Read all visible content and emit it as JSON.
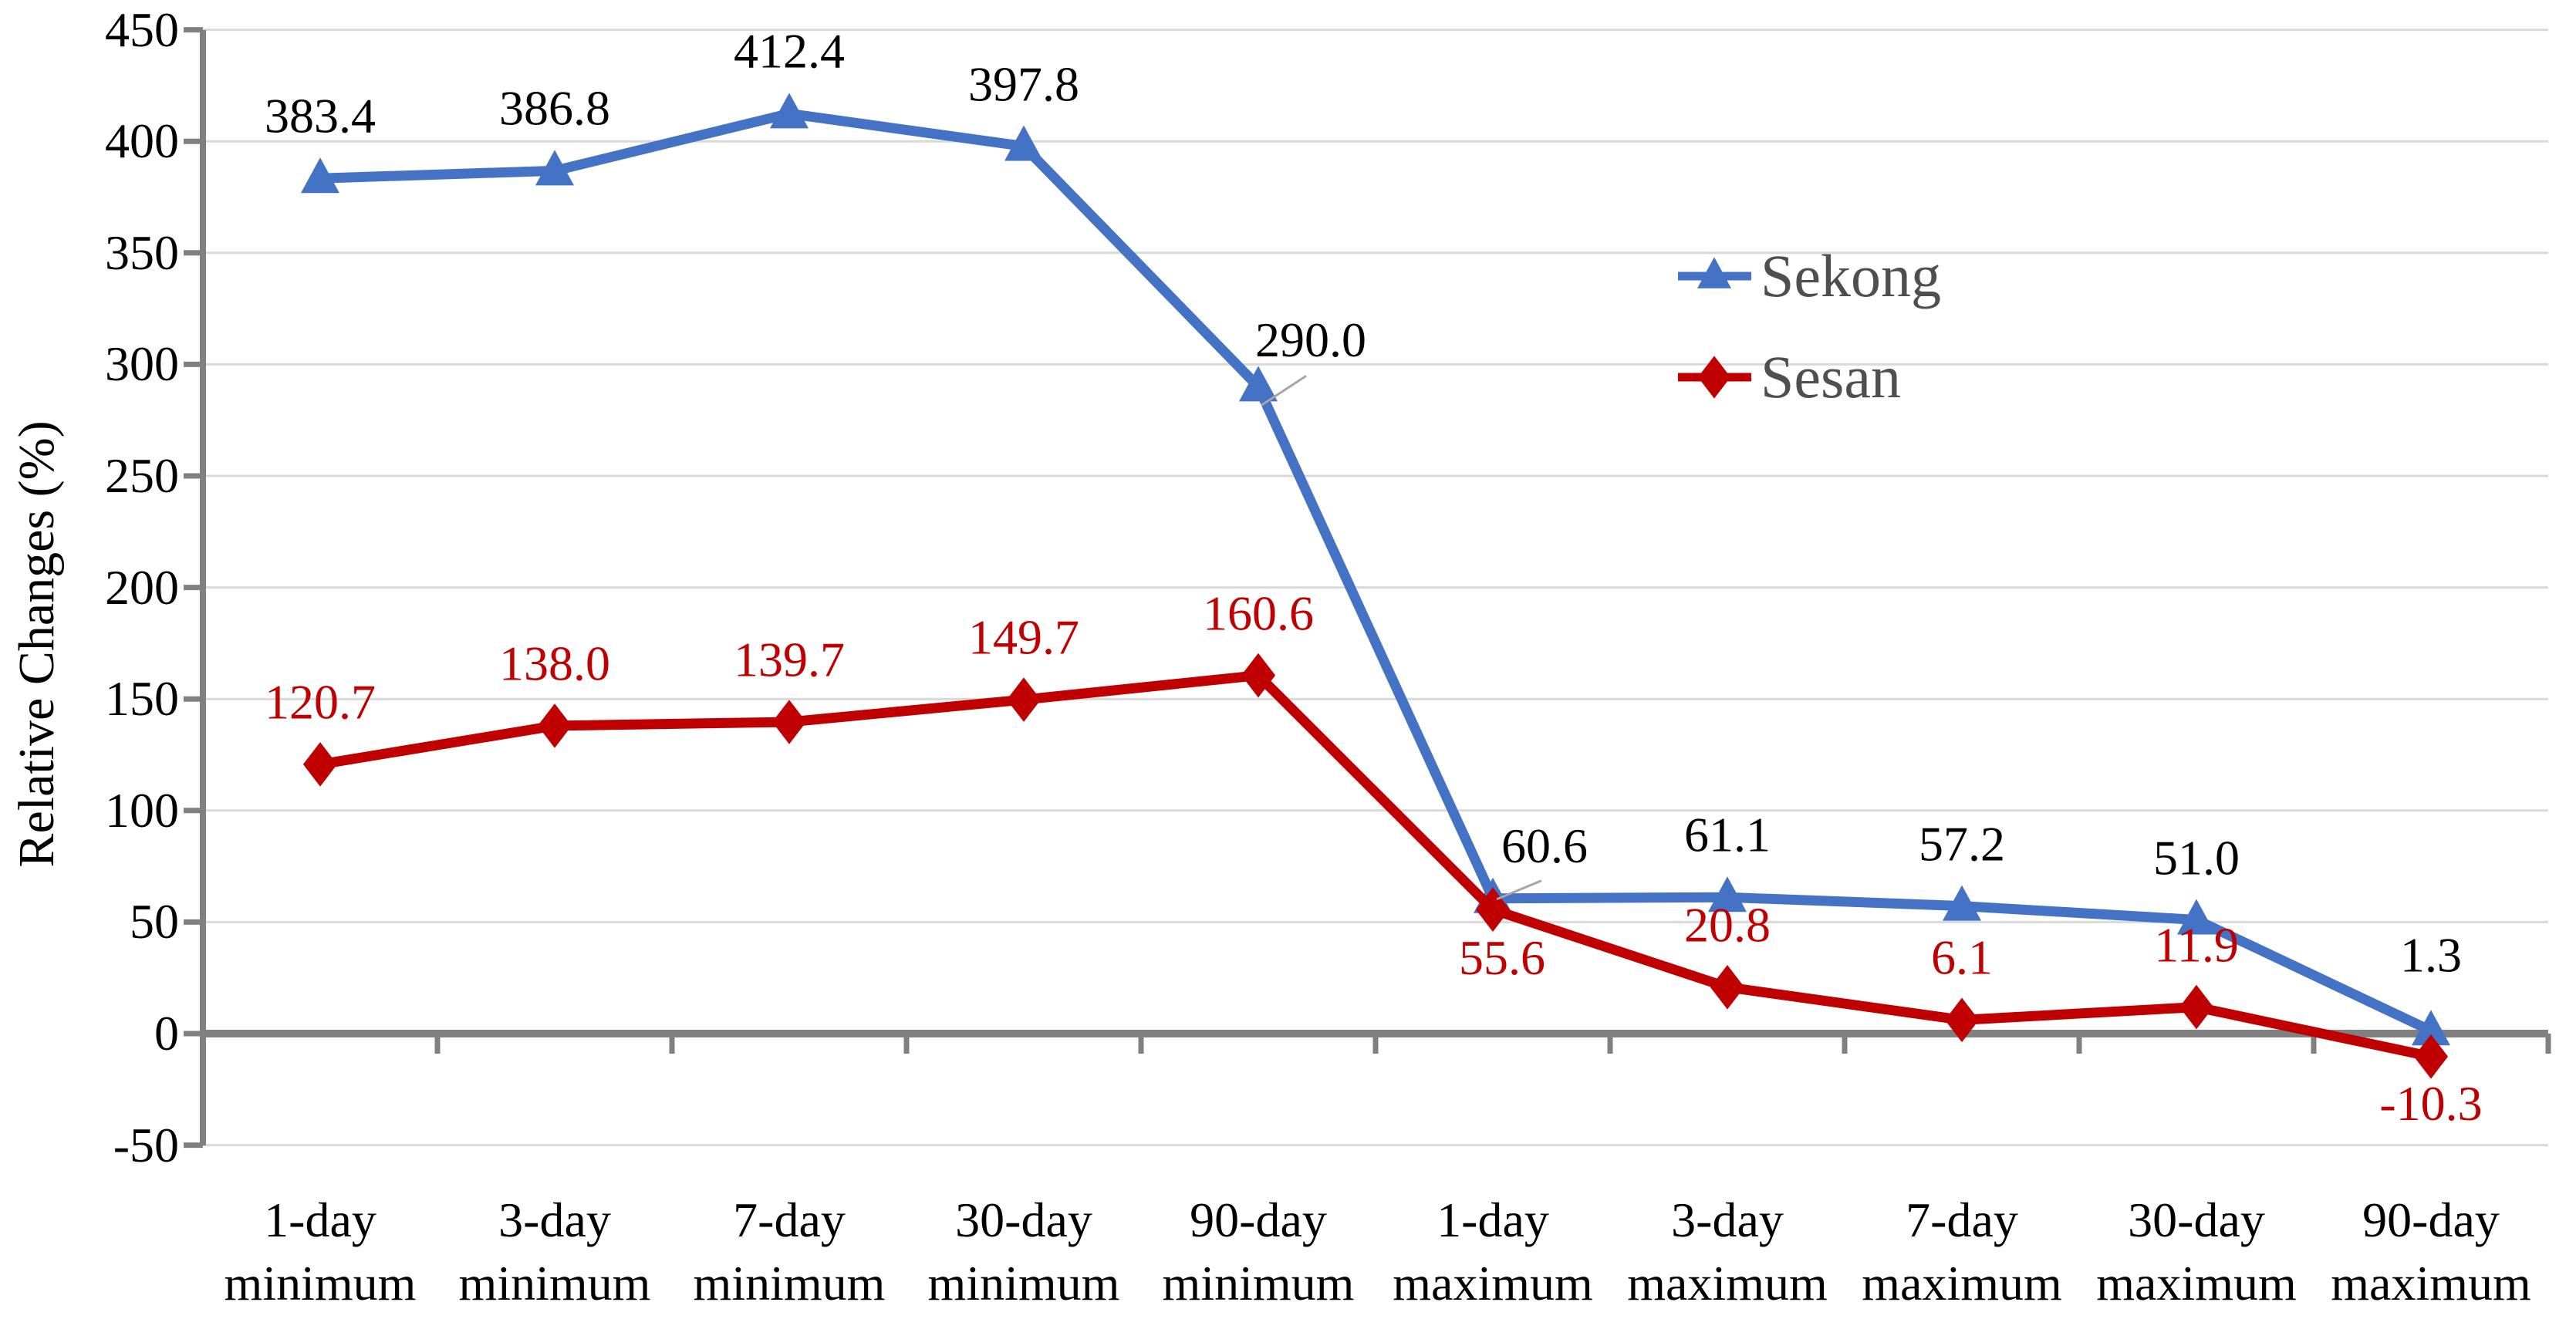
{
  "chart_data": {
    "type": "line",
    "title": "",
    "ylabel": "Relative Changes (%)",
    "ylim": [
      -50,
      450
    ],
    "y_tick_step": 50,
    "grid": true,
    "legend_position": "upper-right-inside",
    "y_ticks": [
      "450",
      "400",
      "350",
      "300",
      "250",
      "200",
      "150",
      "100",
      "50",
      "0",
      "-50"
    ],
    "categories": [
      "1-day minimum",
      "3-day minimum",
      "7-day minimum",
      "30-day minimum",
      "90-day minimum",
      "1-day maximum",
      "3-day maximum",
      "7-day maximum",
      "30-day maximum",
      "90-day maximum"
    ],
    "categories_line1": [
      "1-day",
      "3-day",
      "7-day",
      "30-day",
      "90-day",
      "1-day",
      "3-day",
      "7-day",
      "30-day",
      "90-day"
    ],
    "categories_line2": [
      "minimum",
      "minimum",
      "minimum",
      "minimum",
      "minimum",
      "maximum",
      "maximum",
      "maximum",
      "maximum",
      "maximum"
    ],
    "series": [
      {
        "name": "Sekong",
        "color": "#4472C4",
        "marker": "triangle",
        "label_color": "#000000",
        "values": [
          383.4,
          386.8,
          412.4,
          397.8,
          290.0,
          60.6,
          61.1,
          57.2,
          51.0,
          1.3
        ],
        "labels": [
          "383.4",
          "386.8",
          "412.4",
          "397.8",
          "290.0",
          "60.6",
          "61.1",
          "57.2",
          "51.0",
          "1.3"
        ],
        "label_pos": [
          "above",
          "above",
          "above",
          "above",
          "leader1",
          "leader2",
          "above",
          "above",
          "above",
          "above-high"
        ]
      },
      {
        "name": "Sesan",
        "color": "#C00000",
        "marker": "diamond",
        "label_color": "#C00000",
        "values": [
          120.7,
          138.0,
          139.7,
          149.7,
          160.6,
          55.6,
          20.8,
          6.1,
          11.9,
          -10.3
        ],
        "labels": [
          "120.7",
          "138.0",
          "139.7",
          "149.7",
          "160.6",
          "55.6",
          "20.8",
          "6.1",
          "11.9",
          "-10.3"
        ],
        "label_pos": [
          "above",
          "above",
          "above",
          "above",
          "above",
          "below-right",
          "above",
          "above",
          "above",
          "below"
        ]
      }
    ],
    "colors": {
      "gridline": "#D9D9D9",
      "axis": "#808080",
      "leader_line": "#A6A6A6",
      "legend_text": "#4f4f4f",
      "background": "#FFFFFF"
    }
  }
}
